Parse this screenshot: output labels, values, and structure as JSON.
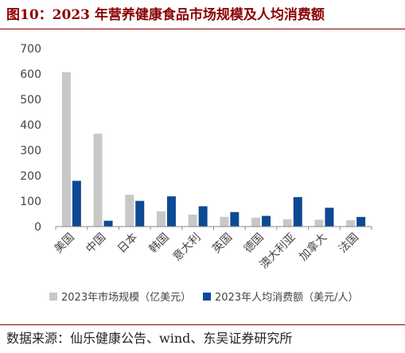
{
  "title": "图10：2023 年营养健康食品市场规模及人均消费额",
  "source": "数据来源：仙乐健康公告、wind、东吴证券研究所",
  "colors": {
    "series1": "#c8c8c8",
    "series2": "#0d4a94",
    "accent": "#8b0000"
  },
  "chart_data": {
    "type": "bar",
    "categories": [
      "美国",
      "中国",
      "日本",
      "韩国",
      "意大利",
      "英国",
      "德国",
      "澳大利亚",
      "加拿大",
      "法国"
    ],
    "series": [
      {
        "name": "2023年市场规模（亿美元）",
        "values": [
          607,
          365,
          125,
          60,
          47,
          38,
          35,
          29,
          27,
          25
        ]
      },
      {
        "name": "2023年人均消费额（美元/人）",
        "values": [
          180,
          23,
          101,
          119,
          80,
          57,
          42,
          116,
          74,
          38
        ]
      }
    ],
    "ylim": [
      0,
      700
    ],
    "yticks": [
      0,
      100,
      200,
      300,
      400,
      500,
      600,
      700
    ],
    "grid": false,
    "legend": "bottom"
  }
}
